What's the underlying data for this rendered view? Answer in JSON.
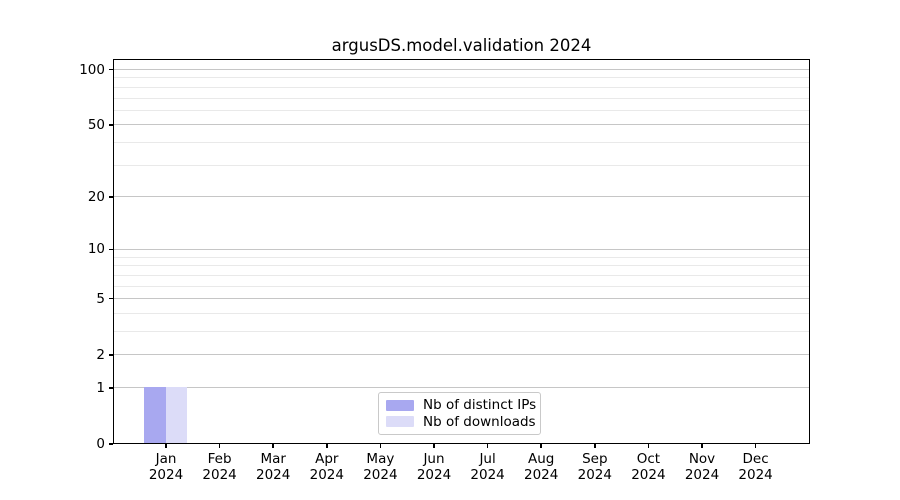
{
  "title": "argusDS.model.validation 2024",
  "chart_data": {
    "type": "bar",
    "title": "argusDS.model.validation 2024",
    "categories": [
      "Jan",
      "Feb",
      "Mar",
      "Apr",
      "May",
      "Jun",
      "Jul",
      "Aug",
      "Sep",
      "Oct",
      "Nov",
      "Dec"
    ],
    "year_label": "2024",
    "series": [
      {
        "name": "Nb of distinct IPs",
        "color": "#a8a8f0",
        "values": [
          1,
          0,
          0,
          0,
          0,
          0,
          0,
          0,
          0,
          0,
          0,
          0
        ]
      },
      {
        "name": "Nb of downloads",
        "color": "#dcdcf8",
        "values": [
          1,
          0,
          0,
          0,
          0,
          0,
          0,
          0,
          0,
          0,
          0,
          0
        ]
      }
    ],
    "y_scale": "log1p",
    "y_major_ticks": [
      0,
      1,
      2,
      5,
      10,
      20,
      50,
      100
    ],
    "y_minor_ticks": [
      3,
      4,
      6,
      7,
      8,
      9,
      30,
      40,
      60,
      70,
      80,
      90
    ],
    "ylim": [
      0,
      114
    ],
    "grid": true,
    "legend_position": "lower center",
    "colors": {
      "grid_major": "#c6c6c6",
      "grid_minor": "#e9e9e9",
      "axis": "#000000",
      "background": "#ffffff",
      "text": "#000000"
    }
  }
}
